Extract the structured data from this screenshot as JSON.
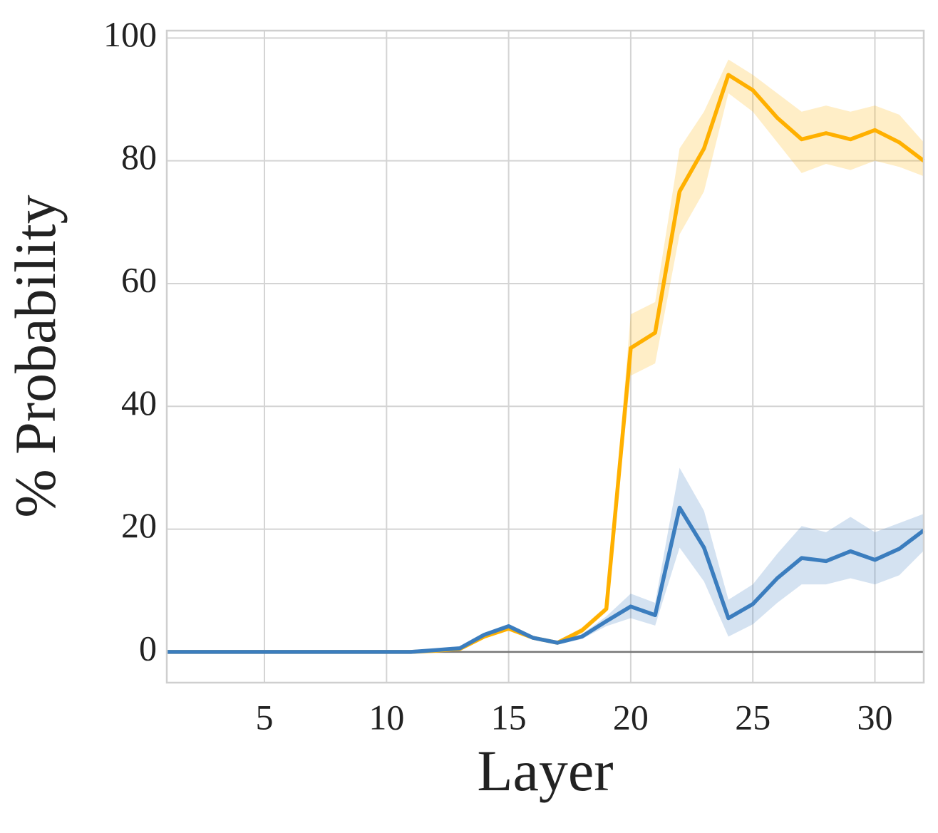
{
  "chart_data": {
    "type": "line",
    "xlabel": "Layer",
    "ylabel": "% Probability",
    "x": [
      1,
      2,
      3,
      4,
      5,
      6,
      7,
      8,
      9,
      10,
      11,
      12,
      13,
      14,
      15,
      16,
      17,
      18,
      19,
      20,
      21,
      22,
      23,
      24,
      25,
      26,
      27,
      28,
      29,
      30,
      31,
      32
    ],
    "series": [
      {
        "color": "#ffb000",
        "values": [
          0,
          0,
          0,
          0,
          0,
          0,
          0,
          0,
          0,
          0,
          0,
          0.2,
          0.5,
          2.5,
          3.8,
          2.3,
          1.5,
          3.5,
          7,
          49.5,
          52,
          75,
          82,
          94,
          91.5,
          87,
          83.5,
          84.5,
          83.5,
          85,
          83,
          80
        ],
        "lower": [
          0,
          0,
          0,
          0,
          0,
          0,
          0,
          0,
          0,
          0,
          0,
          0.1,
          0.3,
          2.2,
          3.5,
          2,
          1.3,
          3,
          6.5,
          45,
          47,
          68,
          75,
          91,
          88,
          83,
          78,
          79.5,
          78.5,
          80,
          79,
          77.5
        ],
        "upper": [
          0,
          0,
          0,
          0,
          0,
          0,
          0,
          0,
          0,
          0,
          0,
          0.3,
          0.7,
          2.8,
          4.1,
          2.6,
          1.7,
          4,
          7.5,
          55,
          57,
          82,
          88,
          96.5,
          94,
          91,
          88,
          89,
          88,
          89,
          87.5,
          83
        ]
      },
      {
        "color": "#3b7dbe",
        "values": [
          0,
          0,
          0,
          0,
          0,
          0,
          0,
          0,
          0,
          0,
          0,
          0.3,
          0.6,
          2.8,
          4.2,
          2.3,
          1.5,
          2.5,
          5,
          7.4,
          6,
          23.5,
          17,
          5.5,
          7.8,
          12,
          15.3,
          14.8,
          16.4,
          15,
          16.8,
          19.8
        ],
        "lower": [
          0,
          0,
          0,
          0,
          0,
          0,
          0,
          0,
          0,
          0,
          0,
          0.2,
          0.4,
          2.5,
          3.9,
          2,
          1.2,
          2.1,
          4.2,
          5.5,
          4.3,
          17,
          11.5,
          2.5,
          4.5,
          8,
          11,
          11,
          12,
          11,
          12.5,
          16.5
        ],
        "upper": [
          0,
          0,
          0,
          0,
          0,
          0,
          0,
          0,
          0,
          0,
          0,
          0.4,
          0.8,
          3.1,
          4.5,
          2.6,
          1.8,
          2.9,
          5.8,
          9.5,
          8,
          30,
          23,
          8.5,
          11,
          16,
          20.5,
          19.5,
          22,
          19.5,
          21,
          22.5
        ]
      }
    ],
    "reference_line": 0,
    "xlim": [
      1,
      32
    ],
    "xticks": [
      5,
      10,
      15,
      20,
      25,
      30
    ],
    "ylim": [
      -5,
      101.2
    ],
    "yticks": [
      0,
      20,
      40,
      60,
      80,
      100
    ],
    "grid": true
  }
}
